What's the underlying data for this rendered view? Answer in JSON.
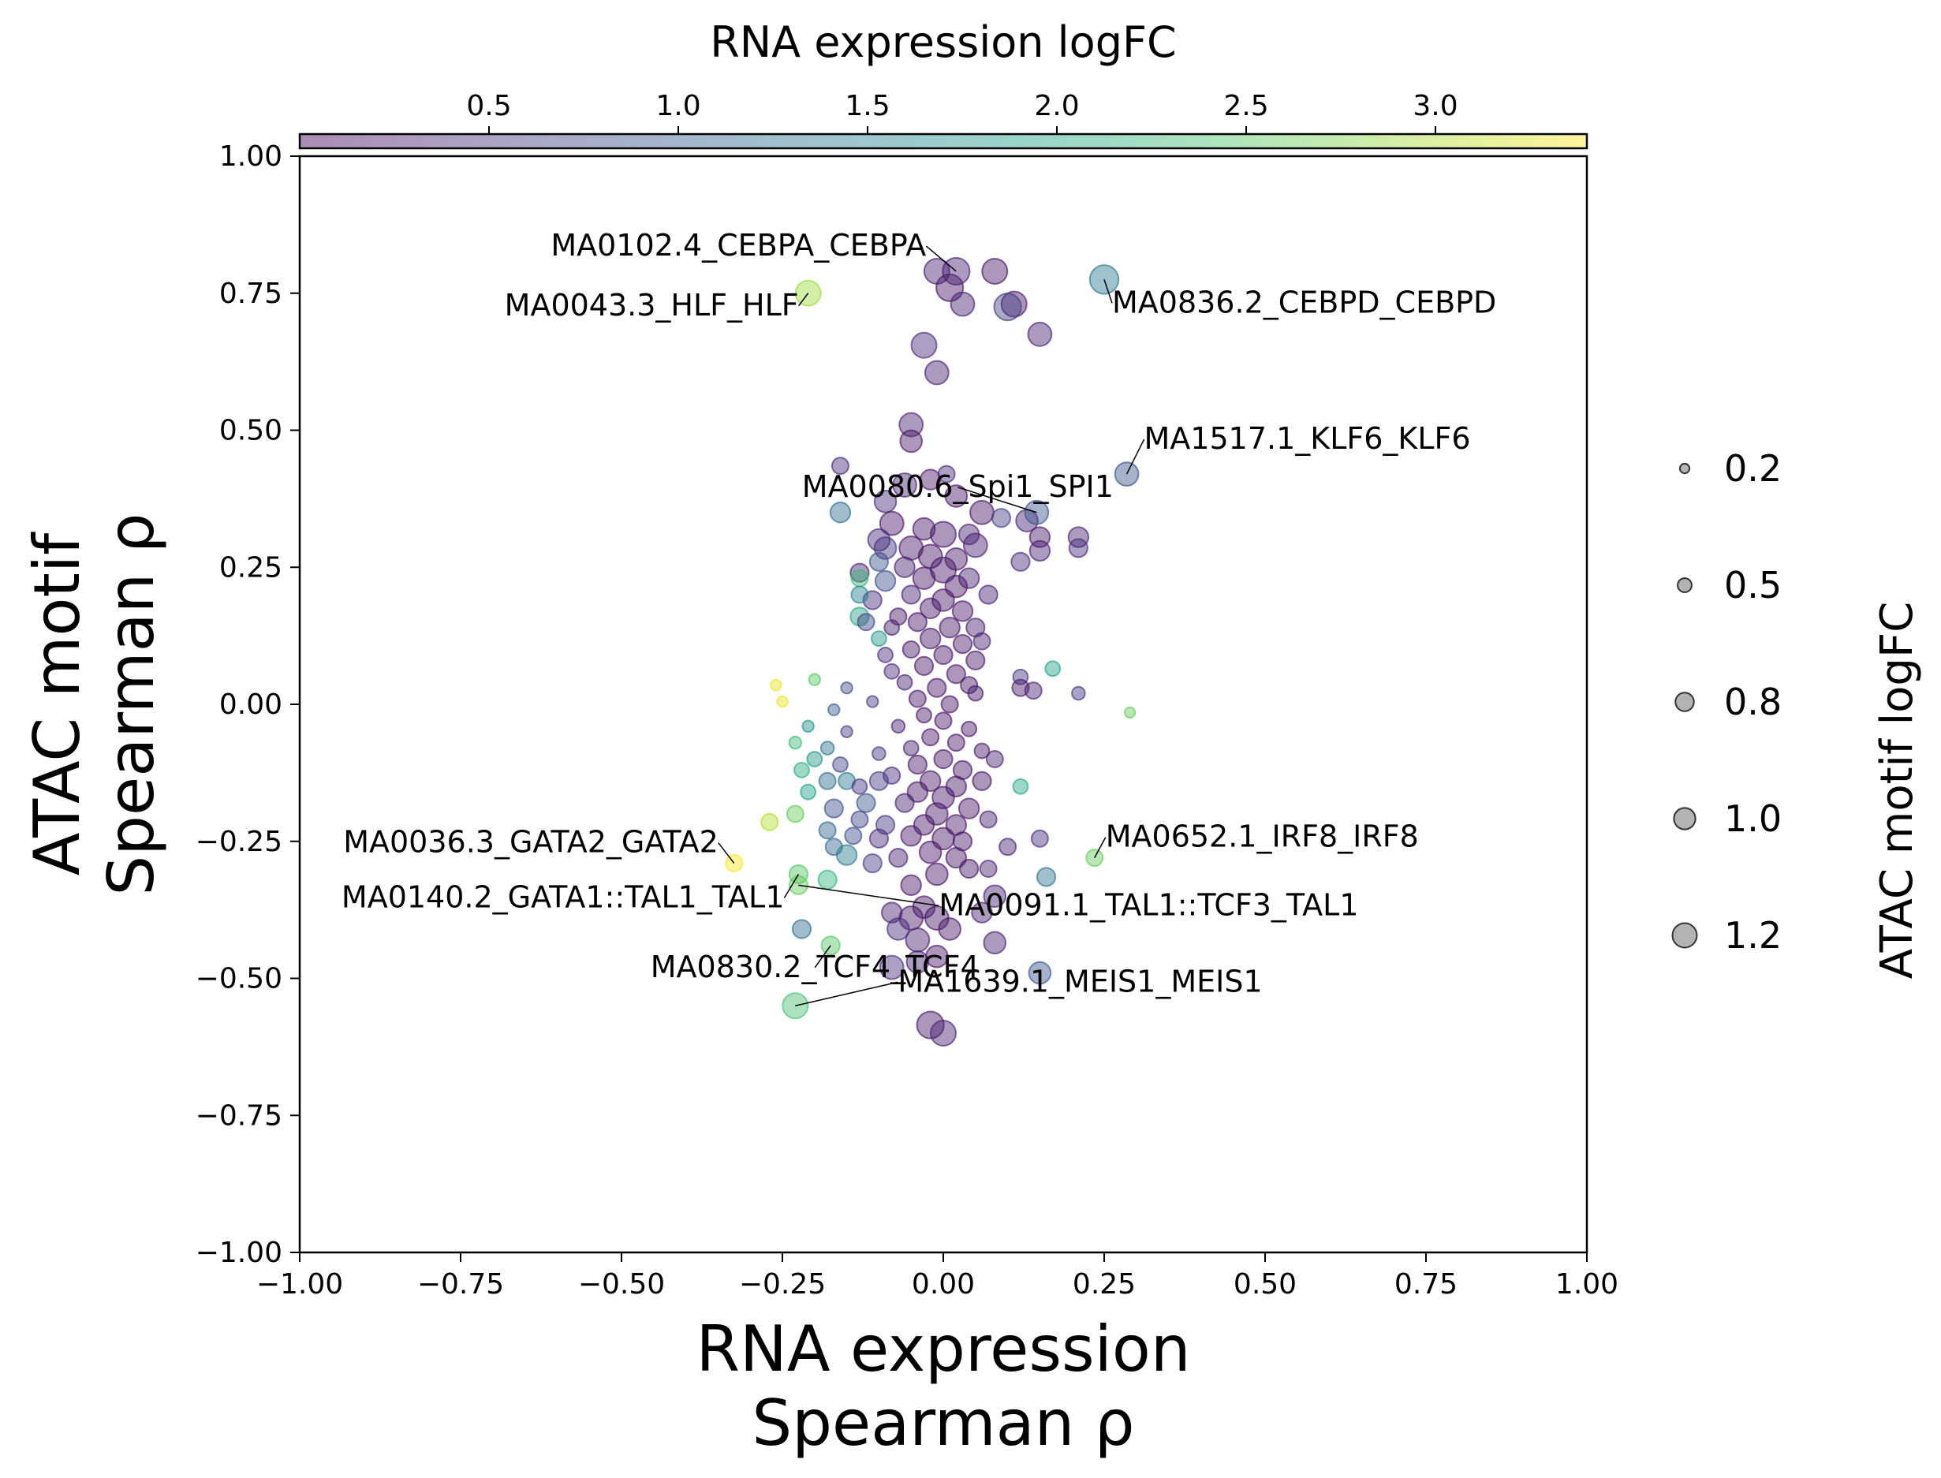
{
  "chart_data": {
    "type": "scatter",
    "xlabel_lines": [
      "RNA expression",
      "Spearman ρ"
    ],
    "ylabel_lines": [
      "ATAC motif",
      "Spearman ρ"
    ],
    "xlim": [
      -1.0,
      1.0
    ],
    "ylim": [
      -1.0,
      1.0
    ],
    "x_ticks": [
      -1.0,
      -0.75,
      -0.5,
      -0.25,
      0.0,
      0.25,
      0.5,
      0.75,
      1.0
    ],
    "x_tick_labels": [
      "−1.00",
      "−0.75",
      "−0.50",
      "−0.25",
      "0.00",
      "0.25",
      "0.50",
      "0.75",
      "1.00"
    ],
    "y_ticks": [
      1.0,
      0.75,
      0.5,
      0.25,
      0.0,
      -0.25,
      -0.5,
      -0.75,
      -1.0
    ],
    "y_tick_labels": [
      "1.00",
      "0.75",
      "0.50",
      "0.25",
      "0.00",
      "−0.25",
      "−0.50",
      "−0.75",
      "−1.00"
    ],
    "grid": false,
    "colorbar": {
      "label": "RNA expression logFC",
      "range": [
        0.0,
        3.4
      ],
      "ticks": [
        0.5,
        1.0,
        1.5,
        2.0,
        2.5,
        3.0
      ],
      "tick_labels": [
        "0.5",
        "1.0",
        "1.5",
        "2.0",
        "2.5",
        "3.0"
      ],
      "colormap": "viridis",
      "alpha": 0.45,
      "placement": "top"
    },
    "size_legend": {
      "title": "ATAC motif logFC",
      "placement": "right",
      "entries": [
        {
          "label": "0.2",
          "value": 0.2
        },
        {
          "label": "0.5",
          "value": 0.5
        },
        {
          "label": "0.8",
          "value": 0.8
        },
        {
          "label": "1.0",
          "value": 1.0
        },
        {
          "label": "1.2",
          "value": 1.2
        }
      ]
    },
    "labeled_points": [
      {
        "label": "MA0102.4_CEBPA_CEBPA",
        "x": 0.02,
        "y": 0.79,
        "color_value": 0.3,
        "size_value": 1.1,
        "text_anchor": "end"
      },
      {
        "label": "MA0836.2_CEBPD_CEBPD",
        "x": 0.25,
        "y": 0.775,
        "color_value": 1.4,
        "size_value": 1.2,
        "text_anchor": "start"
      },
      {
        "label": "MA0043.3_HLF_HLF",
        "x": -0.21,
        "y": 0.75,
        "color_value": 2.9,
        "size_value": 1.0,
        "text_anchor": "end"
      },
      {
        "label": "MA1517.1_KLF6_KLF6",
        "x": 0.285,
        "y": 0.42,
        "color_value": 0.9,
        "size_value": 0.9,
        "text_anchor": "start"
      },
      {
        "label": "MA0080.6_Spi1_SPI1",
        "x": 0.145,
        "y": 0.35,
        "color_value": 0.9,
        "size_value": 0.9,
        "text_anchor": "middle"
      },
      {
        "label": "MA0036.3_GATA2_GATA2",
        "x": -0.325,
        "y": -0.29,
        "color_value": 3.4,
        "size_value": 0.5,
        "text_anchor": "end"
      },
      {
        "label": "MA0652.1_IRF8_IRF8",
        "x": 0.235,
        "y": -0.28,
        "color_value": 2.6,
        "size_value": 0.5,
        "text_anchor": "start"
      },
      {
        "label": "MA0140.2_GATA1::TAL1_TAL1",
        "x": -0.225,
        "y": -0.31,
        "color_value": 2.5,
        "size_value": 0.6,
        "text_anchor": "end"
      },
      {
        "label": "MA0091.1_TAL1::TCF3_TAL1",
        "x": -0.225,
        "y": -0.33,
        "color_value": 2.6,
        "size_value": 0.6,
        "text_anchor": "start"
      },
      {
        "label": "MA0830.2_TCF4_TCF4",
        "x": -0.175,
        "y": -0.44,
        "color_value": 2.5,
        "size_value": 0.6,
        "text_anchor": "middle"
      },
      {
        "label": "MA1639.1_MEIS1_MEIS1",
        "x": -0.23,
        "y": -0.55,
        "color_value": 2.4,
        "size_value": 1.0,
        "text_anchor": "start"
      }
    ],
    "points": [
      {
        "x": -0.01,
        "y": 0.79,
        "c": 0.3,
        "s": 1.0
      },
      {
        "x": 0.08,
        "y": 0.79,
        "c": 0.2,
        "s": 1.0
      },
      {
        "x": 0.01,
        "y": 0.76,
        "c": 0.2,
        "s": 1.1
      },
      {
        "x": 0.03,
        "y": 0.73,
        "c": 0.3,
        "s": 0.9
      },
      {
        "x": 0.11,
        "y": 0.73,
        "c": 0.2,
        "s": 1.0
      },
      {
        "x": 0.1,
        "y": 0.725,
        "c": 0.6,
        "s": 1.1
      },
      {
        "x": 0.15,
        "y": 0.675,
        "c": 0.3,
        "s": 0.9
      },
      {
        "x": -0.03,
        "y": 0.655,
        "c": 0.4,
        "s": 1.0
      },
      {
        "x": -0.01,
        "y": 0.605,
        "c": 0.3,
        "s": 0.9
      },
      {
        "x": -0.05,
        "y": 0.51,
        "c": 0.3,
        "s": 0.9
      },
      {
        "x": -0.05,
        "y": 0.48,
        "c": 0.2,
        "s": 0.8
      },
      {
        "x": -0.16,
        "y": 0.435,
        "c": 0.4,
        "s": 0.5
      },
      {
        "x": -0.06,
        "y": 0.4,
        "c": 0.3,
        "s": 0.9
      },
      {
        "x": -0.02,
        "y": 0.41,
        "c": 0.2,
        "s": 0.7
      },
      {
        "x": 0.005,
        "y": 0.42,
        "c": 0.4,
        "s": 0.5
      },
      {
        "x": 0.02,
        "y": 0.38,
        "c": 0.2,
        "s": 0.8
      },
      {
        "x": -0.09,
        "y": 0.37,
        "c": 0.4,
        "s": 0.8
      },
      {
        "x": -0.16,
        "y": 0.35,
        "c": 1.2,
        "s": 0.7
      },
      {
        "x": 0.06,
        "y": 0.35,
        "c": 0.2,
        "s": 0.9
      },
      {
        "x": 0.09,
        "y": 0.34,
        "c": 0.6,
        "s": 0.6
      },
      {
        "x": 0.13,
        "y": 0.335,
        "c": 0.3,
        "s": 0.8
      },
      {
        "x": -0.08,
        "y": 0.33,
        "c": 0.2,
        "s": 0.9
      },
      {
        "x": -0.03,
        "y": 0.32,
        "c": 0.2,
        "s": 0.8
      },
      {
        "x": 0.0,
        "y": 0.31,
        "c": 0.2,
        "s": 1.0
      },
      {
        "x": 0.04,
        "y": 0.31,
        "c": 0.3,
        "s": 0.7
      },
      {
        "x": -0.1,
        "y": 0.3,
        "c": 0.4,
        "s": 0.8
      },
      {
        "x": 0.15,
        "y": 0.305,
        "c": 0.2,
        "s": 0.7
      },
      {
        "x": 0.21,
        "y": 0.305,
        "c": 0.3,
        "s": 0.7
      },
      {
        "x": 0.05,
        "y": 0.29,
        "c": 0.3,
        "s": 0.9
      },
      {
        "x": -0.05,
        "y": 0.285,
        "c": 0.2,
        "s": 0.9
      },
      {
        "x": -0.09,
        "y": 0.285,
        "c": 0.5,
        "s": 0.8
      },
      {
        "x": 0.21,
        "y": 0.285,
        "c": 0.4,
        "s": 0.6
      },
      {
        "x": 0.15,
        "y": 0.28,
        "c": 0.3,
        "s": 0.7
      },
      {
        "x": -0.02,
        "y": 0.27,
        "c": 0.2,
        "s": 0.9
      },
      {
        "x": 0.02,
        "y": 0.265,
        "c": 0.2,
        "s": 0.8
      },
      {
        "x": -0.1,
        "y": 0.26,
        "c": 0.9,
        "s": 0.6
      },
      {
        "x": 0.12,
        "y": 0.26,
        "c": 0.4,
        "s": 0.6
      },
      {
        "x": -0.06,
        "y": 0.25,
        "c": 0.3,
        "s": 0.7
      },
      {
        "x": 0.0,
        "y": 0.245,
        "c": 0.2,
        "s": 1.0
      },
      {
        "x": 0.04,
        "y": 0.23,
        "c": 0.3,
        "s": 0.7
      },
      {
        "x": -0.13,
        "y": 0.24,
        "c": 0.3,
        "s": 0.6
      },
      {
        "x": -0.03,
        "y": 0.23,
        "c": 0.2,
        "s": 0.8
      },
      {
        "x": -0.13,
        "y": 0.23,
        "c": 2.3,
        "s": 0.5
      },
      {
        "x": 0.02,
        "y": 0.215,
        "c": 0.2,
        "s": 0.8
      },
      {
        "x": -0.09,
        "y": 0.225,
        "c": 0.8,
        "s": 0.7
      },
      {
        "x": -0.05,
        "y": 0.2,
        "c": 0.3,
        "s": 0.6
      },
      {
        "x": -0.11,
        "y": 0.19,
        "c": 0.4,
        "s": 0.6
      },
      {
        "x": 0.0,
        "y": 0.19,
        "c": 0.2,
        "s": 0.8
      },
      {
        "x": 0.07,
        "y": 0.2,
        "c": 0.3,
        "s": 0.6
      },
      {
        "x": -0.13,
        "y": 0.2,
        "c": 1.5,
        "s": 0.5
      },
      {
        "x": -0.02,
        "y": 0.175,
        "c": 0.2,
        "s": 0.7
      },
      {
        "x": 0.03,
        "y": 0.17,
        "c": 0.2,
        "s": 0.7
      },
      {
        "x": -0.07,
        "y": 0.16,
        "c": 0.2,
        "s": 0.5
      },
      {
        "x": -0.13,
        "y": 0.16,
        "c": 2.0,
        "s": 0.6
      },
      {
        "x": -0.12,
        "y": 0.15,
        "c": 0.7,
        "s": 0.5
      },
      {
        "x": -0.04,
        "y": 0.15,
        "c": 0.2,
        "s": 0.6
      },
      {
        "x": 0.01,
        "y": 0.14,
        "c": 0.2,
        "s": 0.7
      },
      {
        "x": 0.05,
        "y": 0.14,
        "c": 0.3,
        "s": 0.6
      },
      {
        "x": -0.08,
        "y": 0.14,
        "c": 0.3,
        "s": 0.4
      },
      {
        "x": -0.02,
        "y": 0.12,
        "c": 0.2,
        "s": 0.7
      },
      {
        "x": -0.1,
        "y": 0.12,
        "c": 1.8,
        "s": 0.4
      },
      {
        "x": 0.03,
        "y": 0.11,
        "c": 0.2,
        "s": 0.6
      },
      {
        "x": 0.06,
        "y": 0.115,
        "c": 0.3,
        "s": 0.5
      },
      {
        "x": -0.05,
        "y": 0.1,
        "c": 0.2,
        "s": 0.5
      },
      {
        "x": -0.09,
        "y": 0.09,
        "c": 0.4,
        "s": 0.4
      },
      {
        "x": 0.0,
        "y": 0.09,
        "c": 0.2,
        "s": 0.6
      },
      {
        "x": 0.05,
        "y": 0.08,
        "c": 0.2,
        "s": 0.6
      },
      {
        "x": -0.03,
        "y": 0.07,
        "c": 0.2,
        "s": 0.6
      },
      {
        "x": -0.08,
        "y": 0.06,
        "c": 0.4,
        "s": 0.4
      },
      {
        "x": 0.02,
        "y": 0.055,
        "c": 0.2,
        "s": 0.6
      },
      {
        "x": 0.12,
        "y": 0.05,
        "c": 0.5,
        "s": 0.4
      },
      {
        "x": 0.17,
        "y": 0.065,
        "c": 1.9,
        "s": 0.4
      },
      {
        "x": -0.06,
        "y": 0.04,
        "c": 0.3,
        "s": 0.4
      },
      {
        "x": -0.01,
        "y": 0.03,
        "c": 0.2,
        "s": 0.6
      },
      {
        "x": 0.04,
        "y": 0.035,
        "c": 0.2,
        "s": 0.5
      },
      {
        "x": 0.12,
        "y": 0.03,
        "c": 0.2,
        "s": 0.5
      },
      {
        "x": 0.14,
        "y": 0.025,
        "c": 0.3,
        "s": 0.5
      },
      {
        "x": 0.21,
        "y": 0.02,
        "c": 0.5,
        "s": 0.3
      },
      {
        "x": -0.04,
        "y": 0.01,
        "c": 0.2,
        "s": 0.5
      },
      {
        "x": 0.01,
        "y": 0.0,
        "c": 0.2,
        "s": 0.5
      },
      {
        "x": 0.05,
        "y": 0.02,
        "c": 0.2,
        "s": 0.4
      },
      {
        "x": -0.2,
        "y": 0.045,
        "c": 2.5,
        "s": 0.2
      },
      {
        "x": -0.26,
        "y": 0.035,
        "c": 3.3,
        "s": 0.15
      },
      {
        "x": -0.25,
        "y": 0.005,
        "c": 3.3,
        "s": 0.15
      },
      {
        "x": -0.15,
        "y": 0.03,
        "c": 0.8,
        "s": 0.2
      },
      {
        "x": -0.17,
        "y": -0.01,
        "c": 1.0,
        "s": 0.2
      },
      {
        "x": 0.29,
        "y": -0.015,
        "c": 2.6,
        "s": 0.15
      },
      {
        "x": -0.11,
        "y": 0.005,
        "c": 0.6,
        "s": 0.2
      },
      {
        "x": -0.03,
        "y": -0.02,
        "c": 0.2,
        "s": 0.4
      },
      {
        "x": 0.0,
        "y": -0.03,
        "c": 0.2,
        "s": 0.5
      },
      {
        "x": -0.07,
        "y": -0.04,
        "c": 0.3,
        "s": 0.3
      },
      {
        "x": 0.04,
        "y": -0.045,
        "c": 0.2,
        "s": 0.4
      },
      {
        "x": -0.21,
        "y": -0.04,
        "c": 1.7,
        "s": 0.2
      },
      {
        "x": -0.15,
        "y": -0.05,
        "c": 0.6,
        "s": 0.2
      },
      {
        "x": -0.02,
        "y": -0.06,
        "c": 0.2,
        "s": 0.5
      },
      {
        "x": 0.02,
        "y": -0.07,
        "c": 0.2,
        "s": 0.5
      },
      {
        "x": -0.23,
        "y": -0.07,
        "c": 2.3,
        "s": 0.25
      },
      {
        "x": -0.18,
        "y": -0.08,
        "c": 1.3,
        "s": 0.3
      },
      {
        "x": -0.05,
        "y": -0.08,
        "c": 0.3,
        "s": 0.4
      },
      {
        "x": 0.06,
        "y": -0.085,
        "c": 0.2,
        "s": 0.4
      },
      {
        "x": -0.1,
        "y": -0.09,
        "c": 0.5,
        "s": 0.3
      },
      {
        "x": 0.0,
        "y": -0.1,
        "c": 0.2,
        "s": 0.6
      },
      {
        "x": -0.04,
        "y": -0.11,
        "c": 0.2,
        "s": 0.6
      },
      {
        "x": 0.03,
        "y": -0.12,
        "c": 0.2,
        "s": 0.6
      },
      {
        "x": -0.2,
        "y": -0.1,
        "c": 1.8,
        "s": 0.4
      },
      {
        "x": -0.16,
        "y": -0.11,
        "c": 0.7,
        "s": 0.4
      },
      {
        "x": -0.08,
        "y": -0.13,
        "c": 0.4,
        "s": 0.5
      },
      {
        "x": 0.08,
        "y": -0.1,
        "c": 0.3,
        "s": 0.5
      },
      {
        "x": -0.02,
        "y": -0.14,
        "c": 0.2,
        "s": 0.7
      },
      {
        "x": 0.02,
        "y": -0.15,
        "c": 0.2,
        "s": 0.7
      },
      {
        "x": -0.22,
        "y": -0.12,
        "c": 2.1,
        "s": 0.4
      },
      {
        "x": -0.15,
        "y": -0.14,
        "c": 1.4,
        "s": 0.5
      },
      {
        "x": -0.1,
        "y": -0.14,
        "c": 0.6,
        "s": 0.6
      },
      {
        "x": 0.06,
        "y": -0.14,
        "c": 0.2,
        "s": 0.6
      },
      {
        "x": -0.04,
        "y": -0.16,
        "c": 0.2,
        "s": 0.7
      },
      {
        "x": 0.0,
        "y": -0.17,
        "c": 0.2,
        "s": 0.8
      },
      {
        "x": -0.18,
        "y": -0.14,
        "c": 1.2,
        "s": 0.5
      },
      {
        "x": -0.13,
        "y": -0.15,
        "c": 0.5,
        "s": 0.4
      },
      {
        "x": -0.21,
        "y": -0.16,
        "c": 1.9,
        "s": 0.4
      },
      {
        "x": 0.12,
        "y": -0.15,
        "c": 2.0,
        "s": 0.4
      },
      {
        "x": -0.06,
        "y": -0.18,
        "c": 0.3,
        "s": 0.6
      },
      {
        "x": 0.04,
        "y": -0.19,
        "c": 0.2,
        "s": 0.7
      },
      {
        "x": -0.12,
        "y": -0.18,
        "c": 0.9,
        "s": 0.6
      },
      {
        "x": -0.17,
        "y": -0.19,
        "c": 0.8,
        "s": 0.6
      },
      {
        "x": -0.01,
        "y": -0.2,
        "c": 0.2,
        "s": 0.8
      },
      {
        "x": -0.03,
        "y": -0.22,
        "c": 0.2,
        "s": 0.7
      },
      {
        "x": 0.02,
        "y": -0.22,
        "c": 0.2,
        "s": 0.7
      },
      {
        "x": -0.09,
        "y": -0.22,
        "c": 0.5,
        "s": 0.6
      },
      {
        "x": -0.13,
        "y": -0.21,
        "c": 0.7,
        "s": 0.5
      },
      {
        "x": 0.07,
        "y": -0.21,
        "c": 0.3,
        "s": 0.5
      },
      {
        "x": -0.23,
        "y": -0.2,
        "c": 2.6,
        "s": 0.5
      },
      {
        "x": -0.05,
        "y": -0.24,
        "c": 0.2,
        "s": 0.7
      },
      {
        "x": 0.0,
        "y": -0.245,
        "c": 0.2,
        "s": 0.8
      },
      {
        "x": 0.03,
        "y": -0.25,
        "c": 0.2,
        "s": 0.6
      },
      {
        "x": -0.1,
        "y": -0.245,
        "c": 0.4,
        "s": 0.6
      },
      {
        "x": -0.18,
        "y": -0.23,
        "c": 1.1,
        "s": 0.5
      },
      {
        "x": -0.14,
        "y": -0.24,
        "c": 0.8,
        "s": 0.5
      },
      {
        "x": -0.02,
        "y": -0.27,
        "c": 0.2,
        "s": 0.8
      },
      {
        "x": 0.02,
        "y": -0.28,
        "c": 0.2,
        "s": 0.7
      },
      {
        "x": -0.07,
        "y": -0.28,
        "c": 0.3,
        "s": 0.6
      },
      {
        "x": -0.27,
        "y": -0.215,
        "c": 3.0,
        "s": 0.5
      },
      {
        "x": -0.17,
        "y": -0.26,
        "c": 1.1,
        "s": 0.5
      },
      {
        "x": 0.15,
        "y": -0.245,
        "c": 0.4,
        "s": 0.5
      },
      {
        "x": 0.1,
        "y": -0.26,
        "c": 0.3,
        "s": 0.5
      },
      {
        "x": -0.15,
        "y": -0.275,
        "c": 1.4,
        "s": 0.7
      },
      {
        "x": 0.04,
        "y": -0.3,
        "c": 0.2,
        "s": 0.6
      },
      {
        "x": -0.11,
        "y": -0.29,
        "c": 0.6,
        "s": 0.6
      },
      {
        "x": -0.01,
        "y": -0.31,
        "c": 0.2,
        "s": 0.8
      },
      {
        "x": 0.07,
        "y": -0.3,
        "c": 0.3,
        "s": 0.5
      },
      {
        "x": -0.18,
        "y": -0.32,
        "c": 2.2,
        "s": 0.6
      },
      {
        "x": 0.16,
        "y": -0.315,
        "c": 1.3,
        "s": 0.6
      },
      {
        "x": -0.05,
        "y": -0.33,
        "c": 0.2,
        "s": 0.7
      },
      {
        "x": 0.08,
        "y": -0.35,
        "c": 0.3,
        "s": 0.8
      },
      {
        "x": -0.03,
        "y": -0.37,
        "c": 0.2,
        "s": 0.8
      },
      {
        "x": -0.08,
        "y": -0.38,
        "c": 0.3,
        "s": 0.7
      },
      {
        "x": -0.05,
        "y": -0.39,
        "c": 0.2,
        "s": 0.9
      },
      {
        "x": -0.01,
        "y": -0.39,
        "c": 0.2,
        "s": 0.9
      },
      {
        "x": 0.06,
        "y": -0.38,
        "c": 0.3,
        "s": 0.7
      },
      {
        "x": -0.22,
        "y": -0.41,
        "c": 1.2,
        "s": 0.6
      },
      {
        "x": -0.07,
        "y": -0.41,
        "c": 0.4,
        "s": 0.8
      },
      {
        "x": 0.01,
        "y": -0.41,
        "c": 0.2,
        "s": 0.8
      },
      {
        "x": -0.04,
        "y": -0.43,
        "c": 0.3,
        "s": 0.9
      },
      {
        "x": -0.08,
        "y": -0.48,
        "c": 0.4,
        "s": 0.9
      },
      {
        "x": -0.04,
        "y": -0.47,
        "c": 0.3,
        "s": 0.8
      },
      {
        "x": -0.01,
        "y": -0.46,
        "c": 0.2,
        "s": 0.8
      },
      {
        "x": 0.08,
        "y": -0.435,
        "c": 0.3,
        "s": 0.8
      },
      {
        "x": 0.15,
        "y": -0.49,
        "c": 0.9,
        "s": 0.8
      },
      {
        "x": -0.02,
        "y": -0.585,
        "c": 0.2,
        "s": 1.1
      },
      {
        "x": 0.0,
        "y": -0.6,
        "c": 0.3,
        "s": 1.0
      }
    ]
  }
}
